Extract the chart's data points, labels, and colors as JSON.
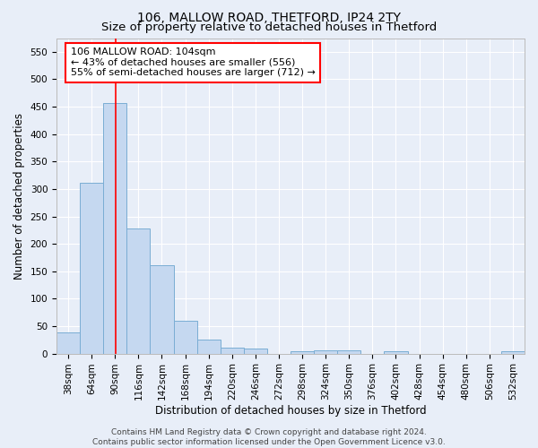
{
  "title": "106, MALLOW ROAD, THETFORD, IP24 2TY",
  "subtitle": "Size of property relative to detached houses in Thetford",
  "xlabel": "Distribution of detached houses by size in Thetford",
  "ylabel": "Number of detached properties",
  "bar_color": "#c5d8f0",
  "bar_edge_color": "#7aadd4",
  "background_color": "#e8eef8",
  "grid_color": "#ffffff",
  "red_line_x": 104,
  "bin_edges": [
    38,
    64,
    90,
    116,
    142,
    168,
    194,
    220,
    246,
    272,
    298,
    324,
    350,
    376,
    402,
    428,
    454,
    480,
    506,
    532,
    558
  ],
  "bar_heights": [
    38,
    311,
    456,
    228,
    161,
    59,
    25,
    11,
    9,
    0,
    5,
    6,
    6,
    0,
    5,
    0,
    0,
    0,
    0,
    5
  ],
  "ylim": [
    0,
    575
  ],
  "yticks": [
    0,
    50,
    100,
    150,
    200,
    250,
    300,
    350,
    400,
    450,
    500,
    550
  ],
  "annotation_box_text": "106 MALLOW ROAD: 104sqm\n← 43% of detached houses are smaller (556)\n55% of semi-detached houses are larger (712) →",
  "footer_line1": "Contains HM Land Registry data © Crown copyright and database right 2024.",
  "footer_line2": "Contains public sector information licensed under the Open Government Licence v3.0.",
  "title_fontsize": 10,
  "subtitle_fontsize": 9.5,
  "axis_label_fontsize": 8.5,
  "tick_fontsize": 7.5,
  "annotation_fontsize": 8,
  "footer_fontsize": 6.5
}
